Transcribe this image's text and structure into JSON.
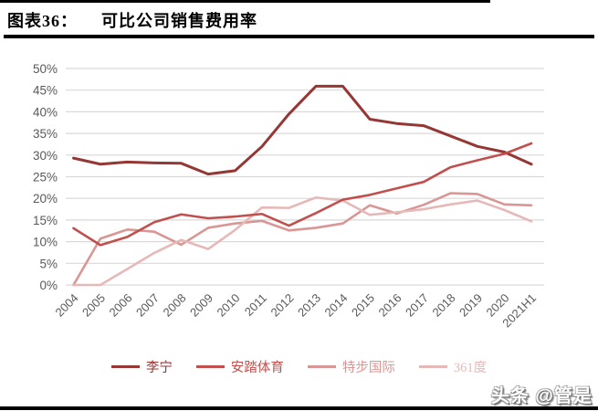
{
  "header": {
    "figure_label": "图表36：",
    "title": "可比公司销售费用率"
  },
  "watermark": "头条 @管是",
  "colors": {
    "grid": "#d9d9d9",
    "axis_text": "#595959",
    "rule": "#000000",
    "background": "#ffffff"
  },
  "chart_data": {
    "type": "line",
    "title": "可比公司销售费用率",
    "xlabel": "",
    "ylabel": "",
    "ylim": [
      0,
      50
    ],
    "grid": true,
    "legend_position": "bottom",
    "y_ticks": [
      "0%",
      "5%",
      "10%",
      "15%",
      "20%",
      "25%",
      "30%",
      "35%",
      "40%",
      "45%",
      "50%"
    ],
    "categories": [
      "2004",
      "2005",
      "2006",
      "2007",
      "2008",
      "2009",
      "2010",
      "2011",
      "2012",
      "2013",
      "2014",
      "2015",
      "2016",
      "2017",
      "2018",
      "2019",
      "2020",
      "2021H1"
    ],
    "series": [
      {
        "name": "李宁",
        "color": "#953735",
        "values": [
          29.3,
          27.9,
          28.4,
          28.2,
          28.1,
          25.6,
          26.4,
          32.0,
          39.5,
          45.9,
          45.9,
          38.3,
          37.3,
          36.8,
          34.4,
          32.0,
          30.7,
          27.9
        ]
      },
      {
        "name": "安踏体育",
        "color": "#C0504D",
        "values": [
          13.1,
          9.2,
          11.1,
          14.5,
          16.3,
          15.4,
          15.8,
          16.4,
          13.7,
          16.6,
          19.7,
          20.8,
          22.3,
          23.8,
          27.2,
          28.8,
          30.3,
          32.7
        ]
      },
      {
        "name": "特步国际",
        "color": "#D99694",
        "values": [
          0,
          10.7,
          12.8,
          12.3,
          9.3,
          13.2,
          14.2,
          14.8,
          12.6,
          13.2,
          14.2,
          18.4,
          16.5,
          18.5,
          21.2,
          21.0,
          18.6,
          18.4
        ]
      },
      {
        "name": "361度",
        "color": "#E6B9B8",
        "values": [
          0,
          0,
          3.7,
          7.4,
          10.4,
          8.3,
          12.7,
          17.9,
          17.8,
          20.2,
          19.5,
          16.2,
          16.8,
          17.5,
          18.6,
          19.5,
          17.3,
          14.7
        ]
      }
    ],
    "z_order": [
      2,
      3,
      0,
      1
    ]
  }
}
